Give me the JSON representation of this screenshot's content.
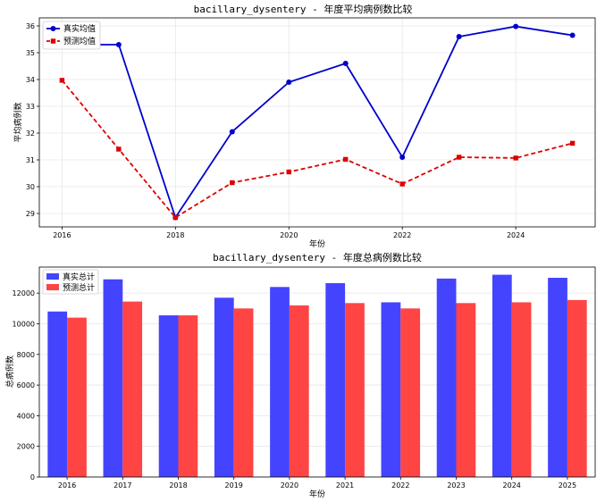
{
  "chart_data": [
    {
      "type": "line",
      "title": "bacillary_dysentery - 年度平均病例数比较",
      "xlabel": "年份",
      "ylabel": "平均病例数",
      "x": [
        2016,
        2017,
        2018,
        2019,
        2020,
        2021,
        2022,
        2023,
        2024,
        2025
      ],
      "xticks": [
        2016,
        2018,
        2020,
        2022,
        2024
      ],
      "xlim": [
        2015.6,
        2025.4
      ],
      "ylim": [
        28.5,
        36.3
      ],
      "yticks": [
        29,
        30,
        31,
        32,
        33,
        34,
        35,
        36
      ],
      "grid": true,
      "legend_position": "top-left",
      "series": [
        {
          "name": "真实均值",
          "color": "#0000cc",
          "marker": "circle",
          "linestyle": "solid",
          "values": [
            35.3,
            35.3,
            28.85,
            32.05,
            33.9,
            34.6,
            31.1,
            35.6,
            35.98,
            35.65
          ]
        },
        {
          "name": "预测均值",
          "color": "#dd0000",
          "marker": "square",
          "linestyle": "dashed",
          "values": [
            33.97,
            31.4,
            28.85,
            30.15,
            30.55,
            31.02,
            30.1,
            31.1,
            31.07,
            31.62
          ]
        }
      ]
    },
    {
      "type": "bar",
      "title": "bacillary_dysentery - 年度总病例数比较",
      "xlabel": "年份",
      "ylabel": "总病例数",
      "categories": [
        "2016",
        "2017",
        "2018",
        "2019",
        "2020",
        "2021",
        "2022",
        "2023",
        "2024",
        "2025"
      ],
      "ylim": [
        0,
        13700
      ],
      "yticks": [
        0,
        2000,
        4000,
        6000,
        8000,
        10000,
        12000
      ],
      "grid": true,
      "legend_position": "top-left",
      "series": [
        {
          "name": "真实总计",
          "color": "#4444ff",
          "values": [
            10800,
            12900,
            10550,
            11700,
            12400,
            12650,
            11400,
            12950,
            13200,
            13000
          ]
        },
        {
          "name": "预测总计",
          "color": "#ff4444",
          "values": [
            10400,
            11450,
            10550,
            11000,
            11200,
            11350,
            11000,
            11350,
            11400,
            11550
          ]
        }
      ]
    }
  ]
}
